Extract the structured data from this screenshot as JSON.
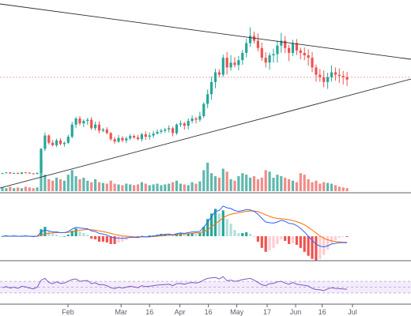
{
  "chart_data": {
    "type": "candlestick",
    "panels": [
      "price_with_volume",
      "macd",
      "rsi"
    ],
    "x_axis": {
      "tick_labels": [
        "Feb",
        "Mar",
        "16",
        "Apr",
        "16",
        "May",
        "17",
        "Jun",
        "16",
        "Jul"
      ],
      "tick_days": [
        35,
        63,
        78,
        94,
        109,
        124,
        140,
        155,
        169,
        185
      ]
    },
    "price": {
      "closes": [
        0.35,
        0.38,
        0.34,
        0.36,
        0.33,
        0.38,
        0.37,
        0.34,
        0.32,
        0.36,
        1.35,
        1.9,
        1.6,
        1.5,
        1.7,
        1.55,
        1.6,
        1.85,
        2.35,
        2.6,
        2.4,
        2.5,
        2.55,
        2.2,
        2.35,
        2.1,
        2.15,
        2.0,
        1.75,
        1.65,
        1.8,
        1.7,
        1.78,
        1.88,
        1.82,
        1.75,
        1.95,
        1.85,
        1.9,
        1.98,
        2.05,
        2.1,
        2.15,
        2.2,
        2.0,
        2.35,
        2.4,
        2.3,
        2.5,
        2.6,
        2.55,
        2.7,
        3.2,
        3.6,
        4.1,
        4.5,
        4.4,
        5.1,
        4.7,
        4.9,
        4.8,
        5.0,
        5.3,
        5.7,
        6.0,
        5.8,
        5.5,
        5.1,
        4.9,
        5.2,
        5.25,
        5.6,
        5.8,
        5.5,
        5.3,
        5.7,
        5.4,
        5.3,
        5.2,
        5.1,
        4.7,
        4.4,
        4.3,
        4.1,
        4.3,
        4.5,
        4.4,
        4.35,
        4.3,
        4.2
      ],
      "event_marker": 4.3
    },
    "volume": [
      5,
      4,
      6,
      4,
      5,
      4,
      6,
      5,
      4,
      5,
      40,
      22,
      16,
      14,
      18,
      16,
      14,
      22,
      28,
      20,
      16,
      18,
      14,
      12,
      16,
      12,
      11,
      10,
      14,
      10,
      9,
      8,
      10,
      9,
      8,
      9,
      12,
      10,
      8,
      9,
      10,
      8,
      9,
      10,
      12,
      14,
      10,
      9,
      8,
      12,
      10,
      13,
      28,
      38,
      24,
      20,
      18,
      30,
      26,
      16,
      14,
      20,
      24,
      22,
      18,
      20,
      16,
      18,
      28,
      26,
      18,
      22,
      20,
      18,
      16,
      14,
      12,
      24,
      22,
      16,
      12,
      14,
      10,
      12,
      11,
      10,
      8,
      6,
      5,
      4
    ],
    "macd": {
      "macd": [
        0.0,
        0.01,
        0.0,
        0.01,
        0.0,
        0.0,
        0.01,
        0.0,
        -0.01,
        0.0,
        0.12,
        0.18,
        0.15,
        0.12,
        0.12,
        0.1,
        0.1,
        0.13,
        0.2,
        0.25,
        0.23,
        0.22,
        0.21,
        0.15,
        0.13,
        0.08,
        0.06,
        0.03,
        -0.02,
        -0.05,
        -0.05,
        -0.06,
        -0.05,
        -0.03,
        -0.03,
        -0.04,
        -0.01,
        -0.02,
        -0.01,
        0.0,
        0.02,
        0.04,
        0.05,
        0.06,
        0.04,
        0.07,
        0.09,
        0.08,
        0.1,
        0.12,
        0.12,
        0.14,
        0.25,
        0.4,
        0.55,
        0.7,
        0.72,
        0.85,
        0.8,
        0.78,
        0.72,
        0.7,
        0.72,
        0.75,
        0.74,
        0.7,
        0.62,
        0.5,
        0.4,
        0.38,
        0.37,
        0.4,
        0.45,
        0.42,
        0.36,
        0.35,
        0.3,
        0.22,
        0.12,
        0.0,
        -0.12,
        -0.22,
        -0.28,
        -0.3,
        -0.27,
        -0.22,
        -0.2,
        -0.18,
        -0.18,
        -0.18
      ],
      "signal": [
        0.0,
        0.0,
        0.0,
        0.0,
        0.0,
        0.0,
        0.0,
        0.0,
        0.0,
        0.0,
        0.03,
        0.06,
        0.08,
        0.09,
        0.1,
        0.1,
        0.1,
        0.11,
        0.13,
        0.15,
        0.17,
        0.18,
        0.19,
        0.18,
        0.17,
        0.15,
        0.13,
        0.11,
        0.08,
        0.05,
        0.03,
        0.01,
        0.0,
        -0.01,
        -0.02,
        -0.02,
        -0.02,
        -0.02,
        -0.02,
        -0.01,
        0.0,
        0.01,
        0.02,
        0.03,
        0.03,
        0.04,
        0.05,
        0.06,
        0.07,
        0.08,
        0.09,
        0.1,
        0.13,
        0.18,
        0.26,
        0.35,
        0.43,
        0.52,
        0.58,
        0.62,
        0.64,
        0.66,
        0.68,
        0.7,
        0.71,
        0.71,
        0.69,
        0.65,
        0.6,
        0.56,
        0.52,
        0.5,
        0.49,
        0.48,
        0.46,
        0.44,
        0.41,
        0.37,
        0.32,
        0.25,
        0.17,
        0.09,
        0.01,
        -0.06,
        -0.1,
        -0.13,
        -0.15,
        -0.16,
        -0.17,
        -0.17
      ],
      "ylim": [
        -0.4,
        1.0
      ]
    },
    "rsi": {
      "values": [
        48,
        52,
        47,
        50,
        46,
        53,
        51,
        47,
        44,
        50,
        74,
        80,
        66,
        62,
        68,
        63,
        64,
        70,
        76,
        78,
        70,
        72,
        73,
        62,
        65,
        58,
        59,
        55,
        48,
        45,
        50,
        47,
        50,
        53,
        51,
        48,
        55,
        52,
        53,
        55,
        57,
        58,
        59,
        60,
        55,
        62,
        63,
        60,
        64,
        66,
        64,
        67,
        75,
        80,
        82,
        83,
        78,
        86,
        72,
        74,
        70,
        72,
        76,
        78,
        80,
        74,
        66,
        58,
        55,
        62,
        63,
        68,
        70,
        64,
        60,
        66,
        60,
        58,
        56,
        54,
        46,
        42,
        41,
        38,
        44,
        48,
        46,
        45,
        44,
        43
      ],
      "ylim": [
        0,
        100
      ],
      "band": [
        30,
        70
      ]
    },
    "colors": {
      "up": "#26a69a",
      "down": "#ef5350",
      "up_volume": "#5fb8ad",
      "down_volume": "#f28b88",
      "macd_line": "#2962ff",
      "signal_line": "#ff6d00",
      "rsi_line": "#7e57c2",
      "rsi_band": "#f3ecfb",
      "trendline": "#2a2e39",
      "marker": "#f7a6a6"
    }
  }
}
